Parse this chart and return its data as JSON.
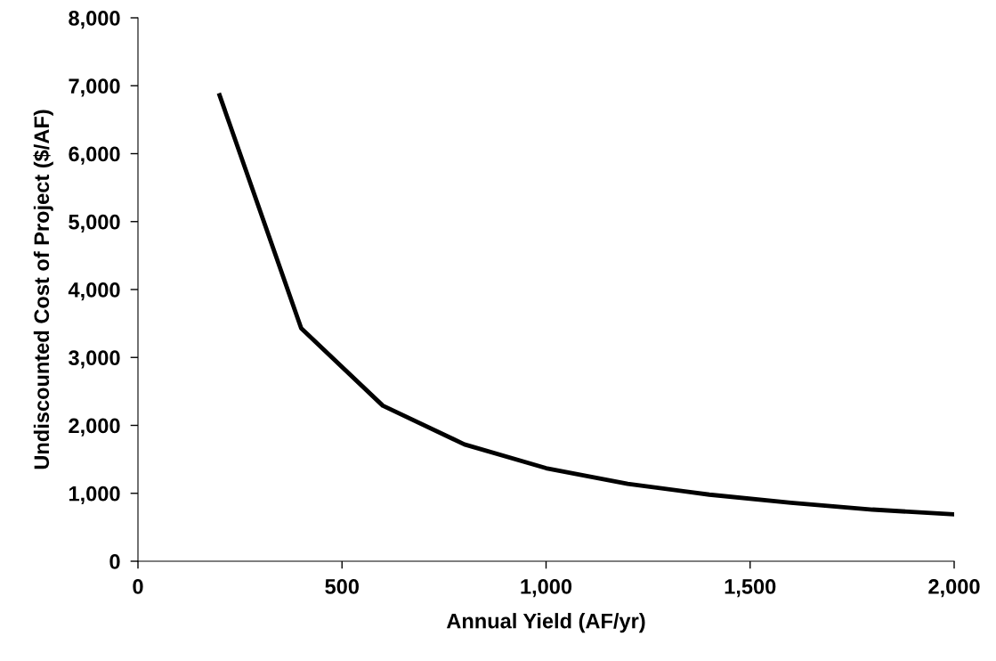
{
  "chart_data": {
    "type": "line",
    "xlabel": "Annual Yield (AF/yr)",
    "ylabel": "Undiscounted Cost of Project ($/AF)",
    "x": [
      200,
      400,
      600,
      800,
      1000,
      1200,
      1400,
      1600,
      1800,
      2000
    ],
    "series": [
      {
        "color": "#000000",
        "values": [
          6860,
          3430,
          2290,
          1720,
          1370,
          1140,
          980,
          860,
          760,
          690
        ]
      }
    ],
    "xlim": [
      0,
      2000
    ],
    "xticks": [
      {
        "value": 0,
        "label": "0"
      },
      {
        "value": 500,
        "label": "500"
      },
      {
        "value": 1000,
        "label": "1,000"
      },
      {
        "value": 1500,
        "label": "1,500"
      },
      {
        "value": 2000,
        "label": "2,000"
      }
    ],
    "ylim": [
      0,
      8000
    ],
    "yticks": [
      {
        "value": 0,
        "label": "0"
      },
      {
        "value": 1000,
        "label": "1,000"
      },
      {
        "value": 2000,
        "label": "2,000"
      },
      {
        "value": 3000,
        "label": "3,000"
      },
      {
        "value": 4000,
        "label": "4,000"
      },
      {
        "value": 5000,
        "label": "5,000"
      },
      {
        "value": 6000,
        "label": "6,000"
      },
      {
        "value": 7000,
        "label": "7,000"
      },
      {
        "value": 8000,
        "label": "8,000"
      }
    ],
    "grid": false,
    "legend": false,
    "marker": "none",
    "line_style": "solid"
  }
}
